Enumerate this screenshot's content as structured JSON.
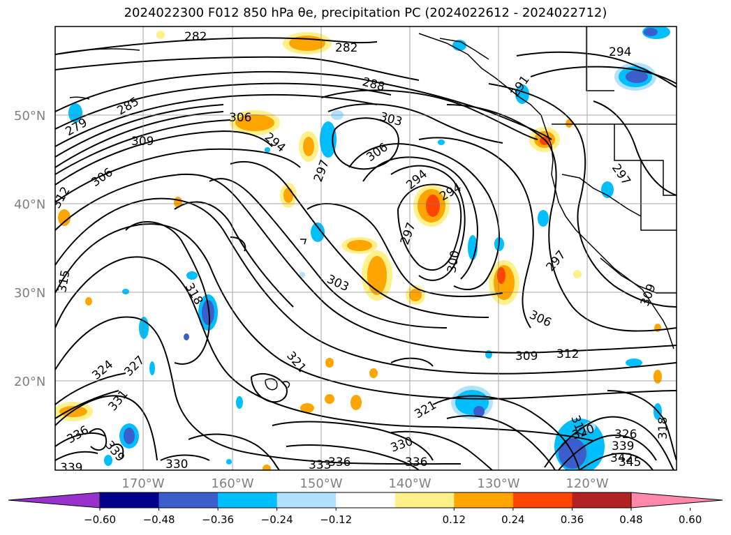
{
  "title": "2024022300 F012 850 hPa θe, precipitation PC (2024022612 - 2024022712)",
  "lat_labels": [
    "50°N",
    "40°N",
    "30°N",
    "20°N"
  ],
  "lon_labels": [
    "170°W",
    "160°W",
    "150°W",
    "140°W",
    "130°W",
    "120°W"
  ],
  "contour_labels": [
    "282",
    "282",
    "288",
    "285",
    "279",
    "309",
    "306",
    "312",
    "306",
    "303",
    "306",
    "294",
    "297",
    "294",
    "294",
    "291",
    "294",
    "297",
    "297",
    "300",
    "297",
    "303",
    "306",
    "309",
    "312",
    "315",
    "318",
    "321",
    "324",
    "327",
    "331",
    "336",
    "339",
    "339",
    "330",
    "330",
    "333",
    "336",
    "336",
    "321",
    "320",
    "326",
    "339",
    "342",
    "345",
    "318",
    "309",
    "312"
  ],
  "colorbar": {
    "ticks": [
      "−0.60",
      "−0.48",
      "−0.36",
      "−0.24",
      "−0.12",
      "0.12",
      "0.24",
      "0.36",
      "0.48",
      "0.60"
    ],
    "colors": [
      "#9932cc",
      "#00008b",
      "#3a5fcd",
      "#00bfff",
      "#b0e2ff",
      "#ffffff",
      "#fff08a",
      "#ffa500",
      "#ff4500",
      "#b22222",
      "#ff88aa"
    ]
  },
  "precip_colors": {
    "strong_neg": "#3a3fd0",
    "neg": "#00bfff",
    "light_neg": "#b0e2ff",
    "light_pos": "#fff08a",
    "pos": "#ffa500",
    "strong_pos": "#ff4500"
  }
}
